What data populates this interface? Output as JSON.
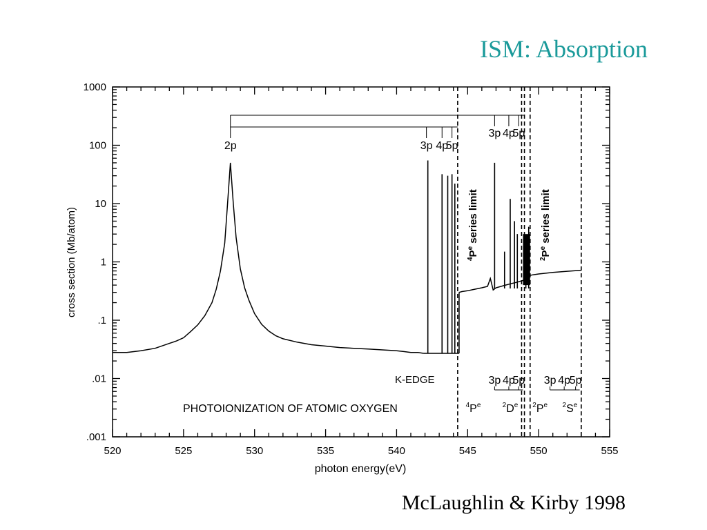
{
  "slide": {
    "title": "ISM: Absorption",
    "citation": "McLaughlin & Kirby 1998"
  },
  "chart_data": {
    "type": "line",
    "title": "",
    "annotation_title": "PHOTOIONIZATION OF ATOMIC OXYGEN",
    "xlabel": "photon energy(eV)",
    "ylabel": "cross section (Mb/atom)",
    "xlim": [
      520,
      555
    ],
    "ylim": [
      0.001,
      1000
    ],
    "yscale": "log",
    "grid": false,
    "x_ticks": [
      520,
      525,
      530,
      535,
      540,
      545,
      550,
      555
    ],
    "x_tick_labels": [
      "520",
      "525",
      "530",
      "535",
      "540",
      "545",
      "550",
      "555"
    ],
    "y_ticks": [
      0.001,
      0.01,
      0.1,
      1,
      10,
      100,
      1000
    ],
    "y_tick_labels": [
      ".001",
      ".01",
      ".1",
      "1",
      "10",
      "100",
      "1000"
    ],
    "series": [
      {
        "x": [
          520,
          521,
          522,
          523,
          524,
          524.5,
          525,
          525.5,
          526,
          526.5,
          527,
          527.3,
          527.6,
          527.9,
          528.1,
          528.3,
          528.5,
          528.7,
          529,
          529.3,
          529.6,
          530,
          530.5,
          531,
          531.5,
          532,
          533,
          534,
          535,
          536,
          537,
          538,
          539,
          540,
          540.5,
          541,
          541.5,
          541.9
        ],
        "y": [
          0.028,
          0.028,
          0.03,
          0.033,
          0.04,
          0.044,
          0.05,
          0.064,
          0.083,
          0.12,
          0.2,
          0.34,
          0.7,
          2.1,
          10,
          50,
          10,
          2.6,
          0.76,
          0.36,
          0.22,
          0.13,
          0.085,
          0.065,
          0.054,
          0.048,
          0.042,
          0.038,
          0.036,
          0.034,
          0.033,
          0.032,
          0.031,
          0.03,
          0.029,
          0.028,
          0.028,
          0.027
        ]
      },
      {
        "x": [
          544.4,
          544.6,
          545,
          545.5,
          546,
          546.4,
          546.6,
          546.8,
          547,
          547.5,
          548,
          548.5,
          548.9,
          549.3,
          549.6,
          550,
          551,
          552,
          553
        ],
        "y": [
          0.3,
          0.31,
          0.32,
          0.34,
          0.36,
          0.38,
          0.52,
          0.33,
          0.36,
          0.39,
          0.42,
          0.45,
          0.48,
          0.58,
          0.6,
          0.62,
          0.66,
          0.69,
          0.72
        ]
      }
    ],
    "resonance_peaks": {
      "x": [
        542.2,
        543.2,
        543.6,
        543.9,
        544.1,
        546.9,
        547.6,
        548.0,
        548.3,
        548.5,
        549.1,
        549.3
      ],
      "y": [
        55,
        32,
        30,
        32,
        22,
        50,
        1.5,
        12,
        5,
        3,
        2.5,
        4
      ]
    },
    "series_limits": [
      544.3,
      548.8,
      549.0,
      549.4,
      553.0
    ],
    "rydberg_labels_top": {
      "lower": {
        "x": [
          528.3,
          542.1,
          543.2,
          543.9
        ],
        "labels": [
          "2p",
          "3p",
          "4p",
          "5p"
        ]
      },
      "upper": {
        "x": [
          546.9,
          547.9,
          548.6
        ],
        "labels": [
          "3p",
          "4p",
          "5p"
        ]
      }
    },
    "rydberg_labels_bottom": {
      "left": {
        "x": [
          546.9,
          547.9,
          548.6
        ],
        "labels": [
          "3p",
          "4p",
          "5p"
        ]
      },
      "right": {
        "x": [
          550.8,
          551.8,
          552.6
        ],
        "labels": [
          "3p",
          "4p",
          "5p"
        ]
      }
    },
    "annotations": {
      "k_edge": "K-EDGE",
      "series_label_a": "P",
      "series_label_a_sup": "4",
      "series_label_a_sup2": "e",
      "series_label_a_text": "series  limit",
      "series_label_b": "P",
      "series_label_b_sup": "2",
      "series_label_b_sup2": "e",
      "series_label_b_text": "series  limit",
      "terms": [
        {
          "x": 545.4,
          "sup": "4",
          "letter": "P",
          "sup2": "e"
        },
        {
          "x": 548.0,
          "sup": "2",
          "letter": "D",
          "sup2": "e"
        },
        {
          "x": 550.1,
          "sup": "2",
          "letter": "P",
          "sup2": "e"
        },
        {
          "x": 552.2,
          "sup": "2",
          "letter": "S",
          "sup2": "e"
        }
      ]
    }
  }
}
